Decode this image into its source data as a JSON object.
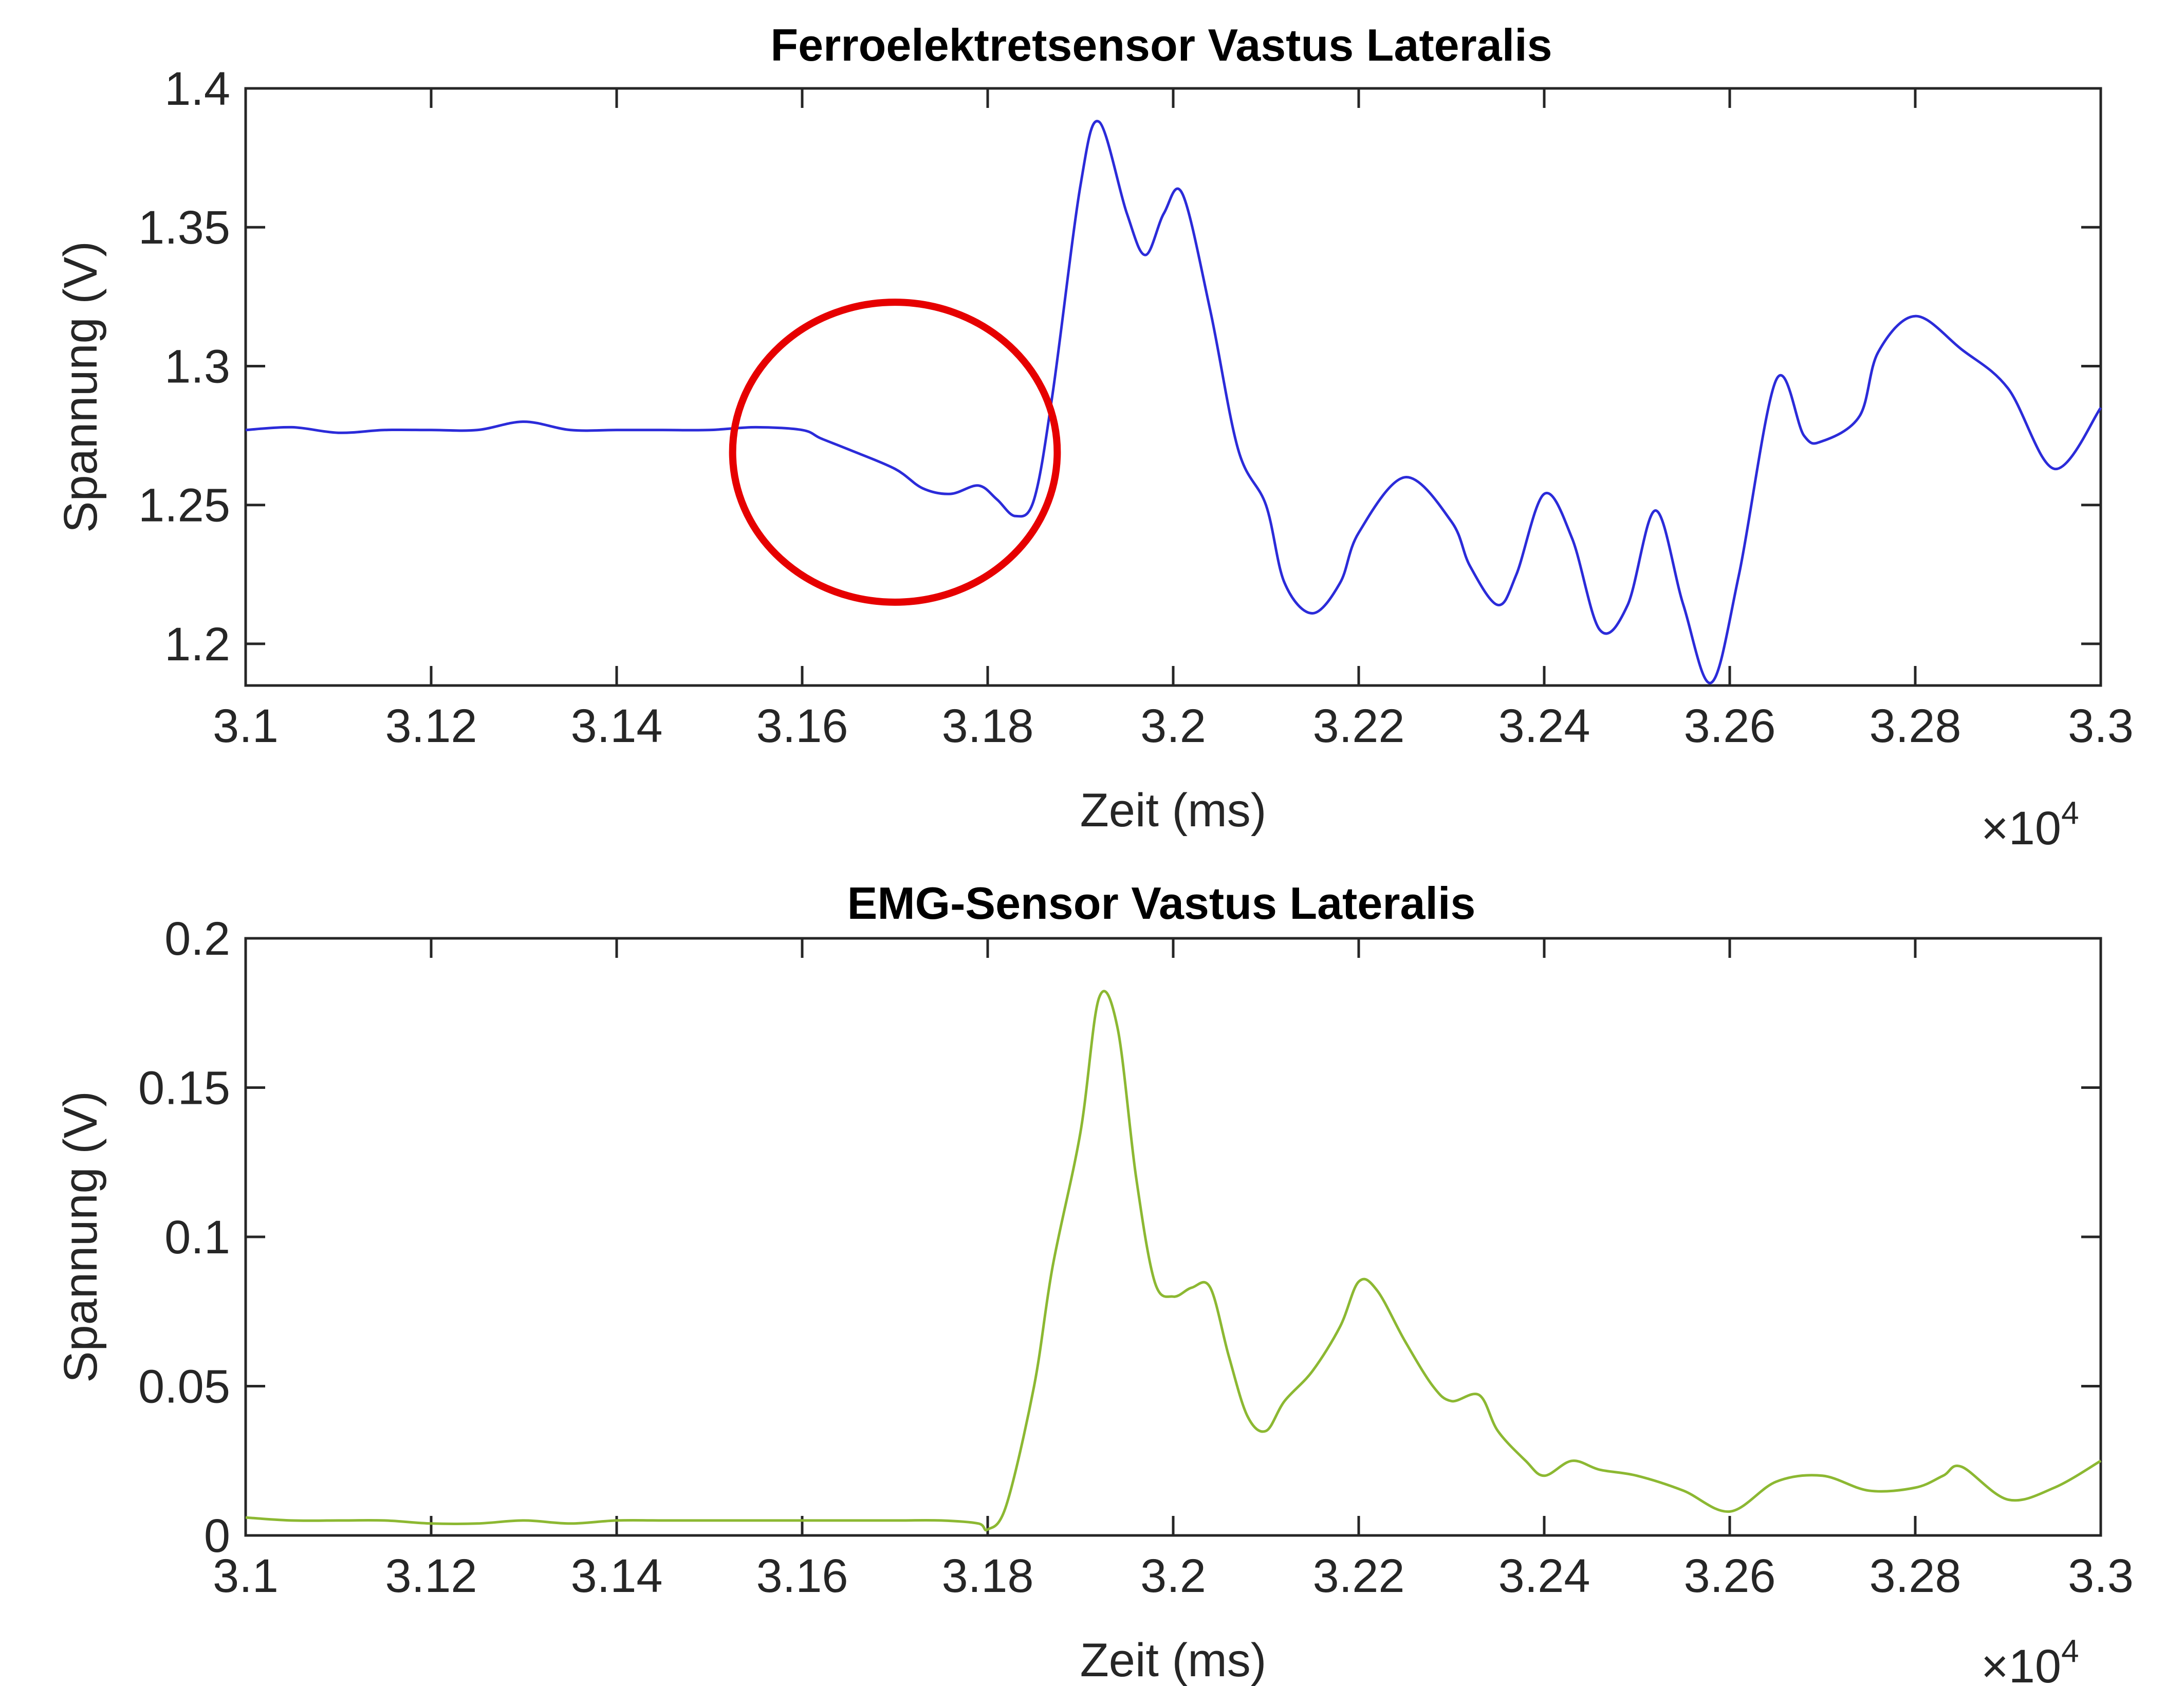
{
  "chart_data": [
    {
      "type": "line",
      "title": "Ferroelektretsensor Vastus Lateralis",
      "xlabel": "Zeit (ms)",
      "ylabel": "Spannung (V)",
      "x_exponent_label": "×10",
      "x_exponent_power": "4",
      "xlim": [
        31000,
        33000
      ],
      "ylim": [
        1.185,
        1.4
      ],
      "xticks": [
        31000,
        31200,
        31400,
        31600,
        31800,
        32000,
        32200,
        32400,
        32600,
        32800,
        33000
      ],
      "xtick_labels": [
        "3.1",
        "3.12",
        "3.14",
        "3.16",
        "3.18",
        "3.2",
        "3.22",
        "3.24",
        "3.26",
        "3.28",
        "3.3"
      ],
      "yticks": [
        1.2,
        1.25,
        1.3,
        1.35,
        1.4
      ],
      "ytick_labels": [
        "1.2",
        "1.25",
        "1.3",
        "1.35",
        "1.4"
      ],
      "grid": false,
      "color": "#2b2bd9",
      "highlight": {
        "shape": "ellipse",
        "color": "#e60000",
        "center": [
          31700,
          1.269
        ],
        "radius_x": 175,
        "radius_y": 0.054
      },
      "series": [
        {
          "x": [
            31000,
            31050,
            31100,
            31150,
            31200,
            31250,
            31300,
            31350,
            31400,
            31450,
            31500,
            31550,
            31600,
            31620,
            31650,
            31700,
            31730,
            31760,
            31790,
            31810,
            31830,
            31850,
            31870,
            31900,
            31920,
            31950,
            31970,
            31990,
            32010,
            32040,
            32070,
            32100,
            32120,
            32150,
            32180,
            32200,
            32250,
            32300,
            32320,
            32350,
            32370,
            32400,
            32430,
            32460,
            32490,
            32520,
            32550,
            32580,
            32610,
            32650,
            32680,
            32700,
            32740,
            32760,
            32800,
            32850,
            32900,
            32950,
            33000
          ],
          "y": [
            1.277,
            1.278,
            1.276,
            1.277,
            1.277,
            1.277,
            1.28,
            1.277,
            1.277,
            1.277,
            1.277,
            1.278,
            1.277,
            1.274,
            1.27,
            1.263,
            1.256,
            1.254,
            1.257,
            1.252,
            1.246,
            1.252,
            1.29,
            1.365,
            1.388,
            1.355,
            1.34,
            1.355,
            1.362,
            1.32,
            1.27,
            1.25,
            1.222,
            1.211,
            1.222,
            1.24,
            1.26,
            1.244,
            1.228,
            1.214,
            1.225,
            1.254,
            1.238,
            1.205,
            1.214,
            1.248,
            1.214,
            1.186,
            1.225,
            1.295,
            1.275,
            1.273,
            1.282,
            1.305,
            1.318,
            1.306,
            1.292,
            1.263,
            1.285
          ]
        }
      ]
    },
    {
      "type": "line",
      "title": "EMG-Sensor Vastus Lateralis",
      "xlabel": "Zeit (ms)",
      "ylabel": "Spannung (V)",
      "x_exponent_label": "×10",
      "x_exponent_power": "4",
      "xlim": [
        31000,
        33000
      ],
      "ylim": [
        0,
        0.2
      ],
      "xticks": [
        31000,
        31200,
        31400,
        31600,
        31800,
        32000,
        32200,
        32400,
        32600,
        32800,
        33000
      ],
      "xtick_labels": [
        "3.1",
        "3.12",
        "3.14",
        "3.16",
        "3.18",
        "3.2",
        "3.22",
        "3.24",
        "3.26",
        "3.28",
        "3.3"
      ],
      "yticks": [
        0,
        0.05,
        0.1,
        0.15,
        0.2
      ],
      "ytick_labels": [
        "0",
        "0.05",
        "0.1",
        "0.15",
        "0.2"
      ],
      "grid": false,
      "color": "#8cb832",
      "series": [
        {
          "x": [
            31000,
            31050,
            31100,
            31150,
            31200,
            31250,
            31300,
            31350,
            31400,
            31450,
            31500,
            31550,
            31600,
            31650,
            31700,
            31750,
            31790,
            31800,
            31820,
            31850,
            31870,
            31900,
            31920,
            31940,
            31960,
            31980,
            32000,
            32020,
            32040,
            32060,
            32080,
            32100,
            32120,
            32150,
            32180,
            32200,
            32220,
            32250,
            32280,
            32300,
            32330,
            32350,
            32380,
            32400,
            32430,
            32460,
            32500,
            32550,
            32600,
            32650,
            32700,
            32750,
            32800,
            32830,
            32850,
            32900,
            32950,
            33000
          ],
          "y": [
            0.006,
            0.005,
            0.005,
            0.005,
            0.004,
            0.004,
            0.005,
            0.004,
            0.005,
            0.005,
            0.005,
            0.005,
            0.005,
            0.005,
            0.005,
            0.005,
            0.004,
            0.002,
            0.01,
            0.05,
            0.09,
            0.135,
            0.18,
            0.17,
            0.12,
            0.085,
            0.08,
            0.083,
            0.083,
            0.06,
            0.04,
            0.035,
            0.045,
            0.055,
            0.07,
            0.085,
            0.082,
            0.065,
            0.05,
            0.045,
            0.047,
            0.035,
            0.025,
            0.02,
            0.025,
            0.022,
            0.02,
            0.015,
            0.008,
            0.018,
            0.02,
            0.015,
            0.016,
            0.02,
            0.023,
            0.012,
            0.016,
            0.025
          ]
        }
      ]
    }
  ]
}
